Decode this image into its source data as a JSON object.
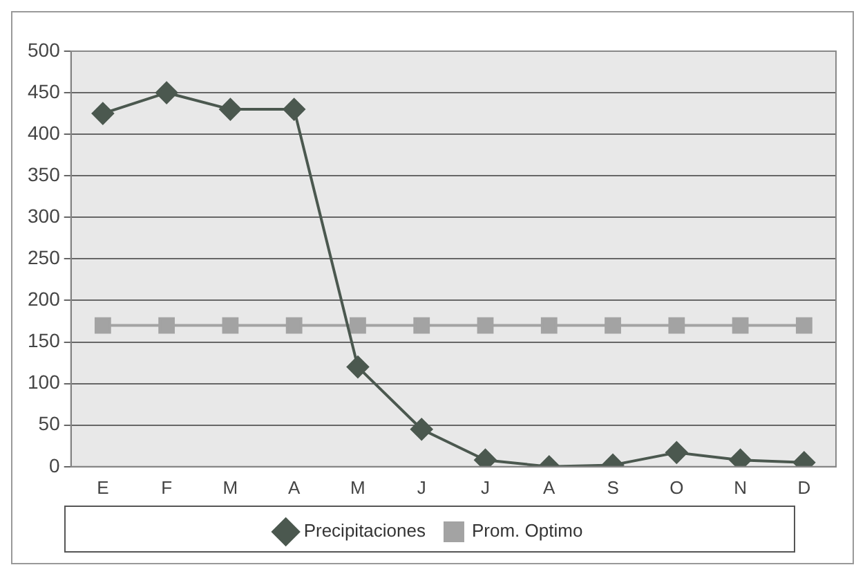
{
  "chart_data": {
    "type": "line",
    "categories": [
      "E",
      "F",
      "M",
      "A",
      "M",
      "J",
      "J",
      "A",
      "S",
      "O",
      "N",
      "D"
    ],
    "series": [
      {
        "name": "Precipitaciones",
        "color": "#4b584f",
        "marker": "diamond",
        "values": [
          425,
          450,
          430,
          430,
          120,
          45,
          8,
          0,
          2,
          17,
          8,
          5
        ]
      },
      {
        "name": "Prom. Optimo",
        "color": "#a3a3a3",
        "marker": "square",
        "values": [
          170,
          170,
          170,
          170,
          170,
          170,
          170,
          170,
          170,
          170,
          170,
          170
        ]
      }
    ],
    "ylim": [
      0,
      500
    ],
    "yticks": [
      0,
      50,
      100,
      150,
      200,
      250,
      300,
      350,
      400,
      450,
      500
    ],
    "grid": "y",
    "legend": "bottom"
  }
}
